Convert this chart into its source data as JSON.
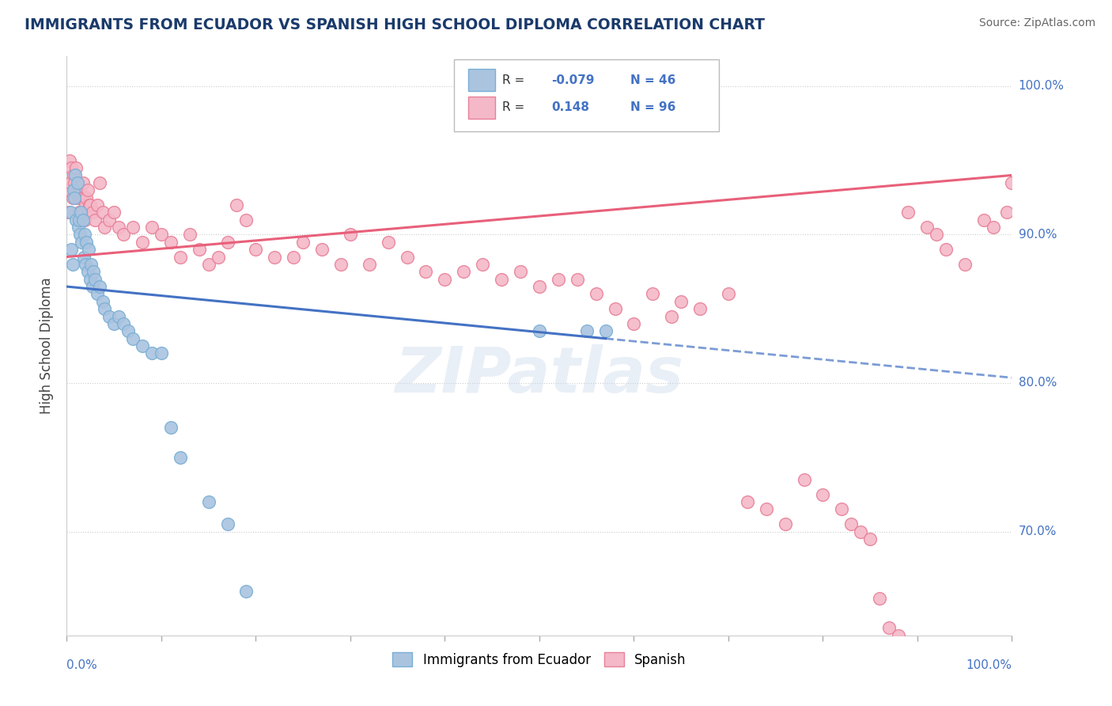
{
  "title": "IMMIGRANTS FROM ECUADOR VS SPANISH HIGH SCHOOL DIPLOMA CORRELATION CHART",
  "source": "Source: ZipAtlas.com",
  "ylabel": "High School Diploma",
  "blue_color": "#aac4e0",
  "pink_color": "#f4b8c8",
  "blue_edge": "#7aafd4",
  "pink_edge": "#e88098",
  "trend_blue": "#4472c4",
  "trend_pink": "#e8607a",
  "watermark": "ZIPatlas",
  "xlim": [
    0,
    100
  ],
  "ylim": [
    63,
    102
  ],
  "yticks": [
    70,
    80,
    90,
    100
  ],
  "ytick_labels": [
    "70.0%",
    "80.0%",
    "90.0%",
    "100.0%"
  ],
  "blue_scatter_x": [
    0.4,
    0.5,
    0.6,
    0.7,
    0.8,
    0.9,
    1.0,
    1.1,
    1.2,
    1.3,
    1.4,
    1.5,
    1.6,
    1.7,
    1.8,
    1.9,
    2.0,
    2.1,
    2.2,
    2.3,
    2.5,
    2.6,
    2.7,
    2.8,
    3.0,
    3.2,
    3.5,
    3.8,
    4.0,
    4.5,
    5.0,
    5.5,
    6.0,
    6.5,
    7.0,
    8.0,
    9.0,
    10.0,
    11.0,
    12.0,
    15.0,
    17.0,
    19.0,
    50.0,
    55.0,
    57.0
  ],
  "blue_scatter_y": [
    91.5,
    89.0,
    88.0,
    93.0,
    92.5,
    94.0,
    91.0,
    93.5,
    90.5,
    91.0,
    90.0,
    91.5,
    89.5,
    91.0,
    88.5,
    90.0,
    88.0,
    89.5,
    87.5,
    89.0,
    87.0,
    88.0,
    86.5,
    87.5,
    87.0,
    86.0,
    86.5,
    85.5,
    85.0,
    84.5,
    84.0,
    84.5,
    84.0,
    83.5,
    83.0,
    82.5,
    82.0,
    82.0,
    77.0,
    75.0,
    72.0,
    70.5,
    66.0,
    83.5,
    83.5,
    83.5
  ],
  "pink_scatter_x": [
    0.1,
    0.2,
    0.3,
    0.4,
    0.5,
    0.6,
    0.7,
    0.8,
    0.9,
    1.0,
    1.1,
    1.2,
    1.3,
    1.4,
    1.5,
    1.6,
    1.7,
    1.8,
    1.9,
    2.0,
    2.1,
    2.2,
    2.3,
    2.4,
    2.5,
    2.7,
    3.0,
    3.2,
    3.5,
    3.8,
    4.0,
    4.5,
    5.0,
    5.5,
    6.0,
    7.0,
    8.0,
    9.0,
    10.0,
    11.0,
    12.0,
    13.0,
    14.0,
    15.0,
    16.0,
    17.0,
    18.0,
    19.0,
    20.0,
    22.0,
    24.0,
    25.0,
    27.0,
    29.0,
    30.0,
    32.0,
    34.0,
    36.0,
    38.0,
    40.0,
    42.0,
    44.0,
    46.0,
    48.0,
    50.0,
    52.0,
    54.0,
    56.0,
    58.0,
    60.0,
    62.0,
    64.0,
    65.0,
    67.0,
    70.0,
    72.0,
    74.0,
    76.0,
    78.0,
    80.0,
    82.0,
    83.0,
    84.0,
    85.0,
    86.0,
    87.0,
    88.0,
    89.0,
    91.0,
    92.0,
    93.0,
    95.0,
    97.0,
    98.0,
    99.5,
    100.0
  ],
  "pink_scatter_y": [
    93.0,
    91.5,
    95.0,
    93.5,
    94.5,
    92.5,
    94.0,
    93.5,
    93.0,
    94.5,
    93.0,
    92.5,
    91.5,
    93.0,
    92.5,
    91.0,
    93.5,
    92.5,
    91.0,
    92.0,
    92.5,
    93.0,
    91.5,
    92.0,
    92.0,
    91.5,
    91.0,
    92.0,
    93.5,
    91.5,
    90.5,
    91.0,
    91.5,
    90.5,
    90.0,
    90.5,
    89.5,
    90.5,
    90.0,
    89.5,
    88.5,
    90.0,
    89.0,
    88.0,
    88.5,
    89.5,
    92.0,
    91.0,
    89.0,
    88.5,
    88.5,
    89.5,
    89.0,
    88.0,
    90.0,
    88.0,
    89.5,
    88.5,
    87.5,
    87.0,
    87.5,
    88.0,
    87.0,
    87.5,
    86.5,
    87.0,
    87.0,
    86.0,
    85.0,
    84.0,
    86.0,
    84.5,
    85.5,
    85.0,
    86.0,
    72.0,
    71.5,
    70.5,
    73.5,
    72.5,
    71.5,
    70.5,
    70.0,
    69.5,
    65.5,
    63.5,
    63.0,
    91.5,
    90.5,
    90.0,
    89.0,
    88.0,
    91.0,
    90.5,
    91.5,
    93.5
  ],
  "blue_trend_x0": 0,
  "blue_trend_x1": 57,
  "blue_trend_y0": 86.5,
  "blue_trend_y1": 83.0,
  "pink_trend_x0": 0,
  "pink_trend_x1": 100,
  "pink_trend_y0": 88.5,
  "pink_trend_y1": 94.0,
  "background_color": "#ffffff"
}
